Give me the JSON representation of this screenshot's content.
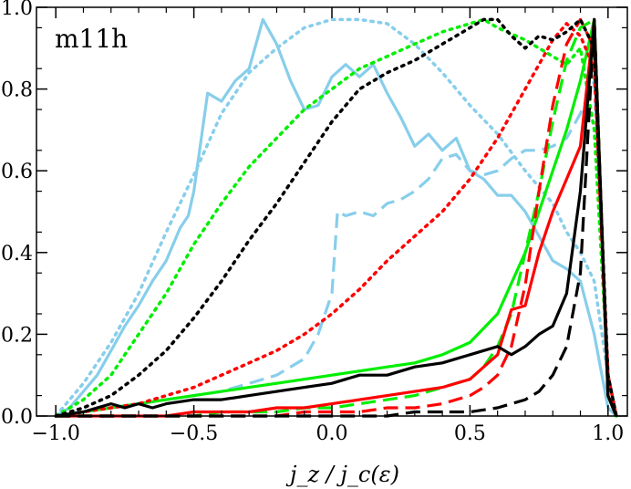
{
  "chart_data": {
    "type": "line",
    "title": "m11h",
    "xlabel": "j_z / j_c(ε)",
    "ylabel": "",
    "xlim": [
      -1.07,
      1.07
    ],
    "ylim": [
      0,
      1.0
    ],
    "xticks": [
      -1.0,
      -0.5,
      0.0,
      0.5,
      1.0
    ],
    "xtick_labels": [
      "−1.0",
      "−0.5",
      "0.0",
      "0.5",
      "1.0"
    ],
    "yticks": [
      0.0,
      0.2,
      0.4,
      0.6,
      0.8,
      1.0
    ],
    "ytick_labels": [
      "0.0",
      "0.2",
      "0.4",
      "0.6",
      "0.8",
      "1.0"
    ],
    "grid": false,
    "series": [
      {
        "name": "skyblue-solid",
        "color": "#87ceeb",
        "style": "solid",
        "x": [
          -1.0,
          -0.95,
          -0.9,
          -0.85,
          -0.8,
          -0.75,
          -0.7,
          -0.65,
          -0.6,
          -0.55,
          -0.52,
          -0.5,
          -0.45,
          -0.4,
          -0.35,
          -0.3,
          -0.25,
          -0.2,
          -0.15,
          -0.1,
          -0.05,
          0.0,
          0.05,
          0.1,
          0.15,
          0.2,
          0.25,
          0.3,
          0.35,
          0.4,
          0.45,
          0.5,
          0.55,
          0.6,
          0.65,
          0.7,
          0.75,
          0.8,
          0.85,
          0.9,
          0.95,
          1.0,
          1.03
        ],
        "y": [
          0.0,
          0.02,
          0.06,
          0.1,
          0.16,
          0.22,
          0.27,
          0.33,
          0.38,
          0.46,
          0.49,
          0.55,
          0.79,
          0.77,
          0.82,
          0.85,
          0.97,
          0.91,
          0.82,
          0.75,
          0.76,
          0.83,
          0.86,
          0.83,
          0.86,
          0.79,
          0.73,
          0.66,
          0.69,
          0.65,
          0.68,
          0.6,
          0.58,
          0.54,
          0.54,
          0.5,
          0.44,
          0.38,
          0.36,
          0.33,
          0.2,
          0.02,
          0.0
        ]
      },
      {
        "name": "skyblue-dotted",
        "color": "#87ceeb",
        "style": "dotted",
        "x": [
          -1.0,
          -0.9,
          -0.8,
          -0.7,
          -0.6,
          -0.5,
          -0.4,
          -0.3,
          -0.2,
          -0.1,
          0.0,
          0.1,
          0.2,
          0.3,
          0.4,
          0.5,
          0.6,
          0.7,
          0.8,
          0.85,
          0.9,
          0.95,
          1.0,
          1.03
        ],
        "y": [
          0.0,
          0.08,
          0.18,
          0.3,
          0.45,
          0.59,
          0.74,
          0.84,
          0.9,
          0.95,
          0.97,
          0.97,
          0.96,
          0.91,
          0.84,
          0.76,
          0.69,
          0.6,
          0.52,
          0.45,
          0.4,
          0.33,
          0.1,
          0.0
        ]
      },
      {
        "name": "skyblue-dashed",
        "color": "#87ceeb",
        "style": "dashed",
        "x": [
          -1.0,
          -0.9,
          -0.8,
          -0.7,
          -0.6,
          -0.5,
          -0.4,
          -0.3,
          -0.2,
          -0.1,
          -0.05,
          0.0,
          0.02,
          0.05,
          0.1,
          0.15,
          0.2,
          0.25,
          0.3,
          0.35,
          0.4,
          0.45,
          0.5,
          0.55,
          0.6,
          0.65,
          0.7,
          0.75,
          0.8,
          0.85,
          0.9,
          0.95,
          1.0,
          1.03
        ],
        "y": [
          0.0,
          0.01,
          0.02,
          0.03,
          0.04,
          0.05,
          0.06,
          0.08,
          0.1,
          0.14,
          0.2,
          0.3,
          0.5,
          0.49,
          0.5,
          0.49,
          0.52,
          0.53,
          0.55,
          0.58,
          0.63,
          0.64,
          0.6,
          0.59,
          0.6,
          0.63,
          0.65,
          0.65,
          0.66,
          0.68,
          0.74,
          0.82,
          0.1,
          0.0
        ]
      },
      {
        "name": "green-solid",
        "color": "#00ee00",
        "style": "solid",
        "x": [
          -1.0,
          -0.9,
          -0.8,
          -0.7,
          -0.6,
          -0.5,
          -0.4,
          -0.3,
          -0.2,
          -0.1,
          0.0,
          0.1,
          0.2,
          0.3,
          0.4,
          0.5,
          0.6,
          0.7,
          0.75,
          0.8,
          0.85,
          0.9,
          0.95,
          1.0,
          1.03
        ],
        "y": [
          0.0,
          0.01,
          0.02,
          0.03,
          0.04,
          0.05,
          0.06,
          0.07,
          0.08,
          0.09,
          0.1,
          0.11,
          0.12,
          0.13,
          0.15,
          0.18,
          0.25,
          0.4,
          0.5,
          0.6,
          0.7,
          0.82,
          0.97,
          0.05,
          0.0
        ]
      },
      {
        "name": "green-dotted",
        "color": "#00ee00",
        "style": "dotted",
        "x": [
          -1.0,
          -0.9,
          -0.8,
          -0.7,
          -0.6,
          -0.5,
          -0.4,
          -0.3,
          -0.2,
          -0.1,
          0.0,
          0.1,
          0.2,
          0.3,
          0.4,
          0.5,
          0.55,
          0.6,
          0.7,
          0.8,
          0.85,
          0.9,
          0.95,
          1.0,
          1.03
        ],
        "y": [
          0.0,
          0.04,
          0.1,
          0.2,
          0.3,
          0.42,
          0.52,
          0.61,
          0.68,
          0.75,
          0.8,
          0.85,
          0.88,
          0.91,
          0.94,
          0.96,
          0.97,
          0.95,
          0.92,
          0.88,
          0.86,
          0.9,
          0.7,
          0.1,
          0.0
        ]
      },
      {
        "name": "green-dashed",
        "color": "#00ee00",
        "style": "dashed",
        "x": [
          -1.0,
          -0.9,
          -0.8,
          -0.7,
          -0.6,
          -0.5,
          -0.4,
          -0.3,
          -0.2,
          -0.1,
          0.0,
          0.1,
          0.2,
          0.3,
          0.4,
          0.5,
          0.55,
          0.6,
          0.65,
          0.7,
          0.75,
          0.8,
          0.85,
          0.9,
          0.95,
          1.0,
          1.03
        ],
        "y": [
          0.0,
          0.0,
          0.0,
          0.0,
          0.0,
          0.0,
          0.01,
          0.01,
          0.01,
          0.02,
          0.02,
          0.03,
          0.04,
          0.05,
          0.07,
          0.09,
          0.12,
          0.17,
          0.25,
          0.4,
          0.55,
          0.72,
          0.87,
          0.95,
          0.97,
          0.05,
          0.0
        ]
      },
      {
        "name": "red-solid",
        "color": "#ff0000",
        "style": "solid",
        "x": [
          -1.0,
          -0.9,
          -0.8,
          -0.7,
          -0.6,
          -0.5,
          -0.4,
          -0.3,
          -0.2,
          -0.1,
          0.0,
          0.1,
          0.2,
          0.3,
          0.4,
          0.5,
          0.55,
          0.6,
          0.65,
          0.7,
          0.75,
          0.8,
          0.85,
          0.9,
          0.95,
          1.0,
          1.03
        ],
        "y": [
          0.0,
          0.0,
          0.0,
          0.0,
          0.0,
          0.01,
          0.01,
          0.01,
          0.02,
          0.02,
          0.03,
          0.04,
          0.05,
          0.06,
          0.07,
          0.09,
          0.12,
          0.15,
          0.26,
          0.27,
          0.4,
          0.5,
          0.58,
          0.66,
          0.97,
          0.05,
          0.0
        ]
      },
      {
        "name": "red-dotted",
        "color": "#ff0000",
        "style": "dotted",
        "x": [
          -1.0,
          -0.9,
          -0.8,
          -0.7,
          -0.6,
          -0.5,
          -0.4,
          -0.3,
          -0.2,
          -0.1,
          0.0,
          0.1,
          0.2,
          0.3,
          0.4,
          0.5,
          0.6,
          0.7,
          0.75,
          0.8,
          0.85,
          0.9,
          0.95,
          1.0,
          1.03
        ],
        "y": [
          0.0,
          0.01,
          0.02,
          0.03,
          0.05,
          0.07,
          0.1,
          0.13,
          0.16,
          0.2,
          0.25,
          0.31,
          0.38,
          0.44,
          0.5,
          0.58,
          0.68,
          0.8,
          0.86,
          0.92,
          0.96,
          0.93,
          0.85,
          0.1,
          0.0
        ]
      },
      {
        "name": "red-dashed",
        "color": "#ff0000",
        "style": "dashed",
        "x": [
          -1.0,
          -0.9,
          -0.8,
          -0.7,
          -0.6,
          -0.5,
          -0.4,
          -0.3,
          -0.2,
          -0.1,
          0.0,
          0.1,
          0.2,
          0.3,
          0.4,
          0.5,
          0.55,
          0.6,
          0.65,
          0.7,
          0.75,
          0.8,
          0.85,
          0.9,
          0.95,
          1.0,
          1.03
        ],
        "y": [
          0.0,
          0.0,
          0.0,
          0.0,
          0.0,
          0.0,
          0.0,
          0.0,
          0.0,
          0.01,
          0.01,
          0.01,
          0.02,
          0.02,
          0.03,
          0.05,
          0.07,
          0.1,
          0.17,
          0.32,
          0.55,
          0.76,
          0.91,
          0.97,
          0.9,
          0.05,
          0.0
        ]
      },
      {
        "name": "black-solid",
        "color": "#000000",
        "style": "solid",
        "x": [
          -1.0,
          -0.9,
          -0.85,
          -0.8,
          -0.75,
          -0.7,
          -0.65,
          -0.6,
          -0.5,
          -0.4,
          -0.3,
          -0.2,
          -0.1,
          0.0,
          0.05,
          0.1,
          0.15,
          0.2,
          0.3,
          0.4,
          0.5,
          0.55,
          0.6,
          0.65,
          0.7,
          0.75,
          0.8,
          0.85,
          0.9,
          0.95,
          1.0,
          1.03
        ],
        "y": [
          0.0,
          0.01,
          0.02,
          0.03,
          0.02,
          0.03,
          0.02,
          0.03,
          0.04,
          0.04,
          0.05,
          0.06,
          0.07,
          0.08,
          0.09,
          0.1,
          0.1,
          0.1,
          0.12,
          0.13,
          0.15,
          0.16,
          0.17,
          0.15,
          0.17,
          0.2,
          0.22,
          0.3,
          0.55,
          0.97,
          0.05,
          0.0
        ]
      },
      {
        "name": "black-dotted",
        "color": "#000000",
        "style": "dotted",
        "x": [
          -1.0,
          -0.9,
          -0.8,
          -0.7,
          -0.6,
          -0.5,
          -0.4,
          -0.3,
          -0.2,
          -0.1,
          0.0,
          0.1,
          0.2,
          0.3,
          0.4,
          0.5,
          0.55,
          0.6,
          0.65,
          0.7,
          0.75,
          0.8,
          0.85,
          0.9,
          0.95,
          1.0,
          1.03
        ],
        "y": [
          0.0,
          0.02,
          0.05,
          0.1,
          0.16,
          0.24,
          0.33,
          0.43,
          0.52,
          0.62,
          0.72,
          0.8,
          0.84,
          0.87,
          0.91,
          0.95,
          0.97,
          0.97,
          0.93,
          0.9,
          0.93,
          0.92,
          0.94,
          0.97,
          0.9,
          0.1,
          0.0
        ]
      },
      {
        "name": "black-dashed",
        "color": "#000000",
        "style": "dashed",
        "x": [
          -1.0,
          -0.9,
          -0.8,
          -0.7,
          -0.6,
          -0.5,
          -0.4,
          -0.3,
          -0.2,
          -0.1,
          0.0,
          0.1,
          0.2,
          0.3,
          0.4,
          0.5,
          0.6,
          0.65,
          0.7,
          0.75,
          0.8,
          0.85,
          0.9,
          0.95,
          1.0,
          1.03
        ],
        "y": [
          0.0,
          0.0,
          0.0,
          0.0,
          0.0,
          0.0,
          0.0,
          0.0,
          0.0,
          0.0,
          0.0,
          0.0,
          0.0,
          0.01,
          0.01,
          0.01,
          0.02,
          0.03,
          0.04,
          0.06,
          0.1,
          0.17,
          0.35,
          0.97,
          0.05,
          0.0
        ]
      }
    ]
  }
}
